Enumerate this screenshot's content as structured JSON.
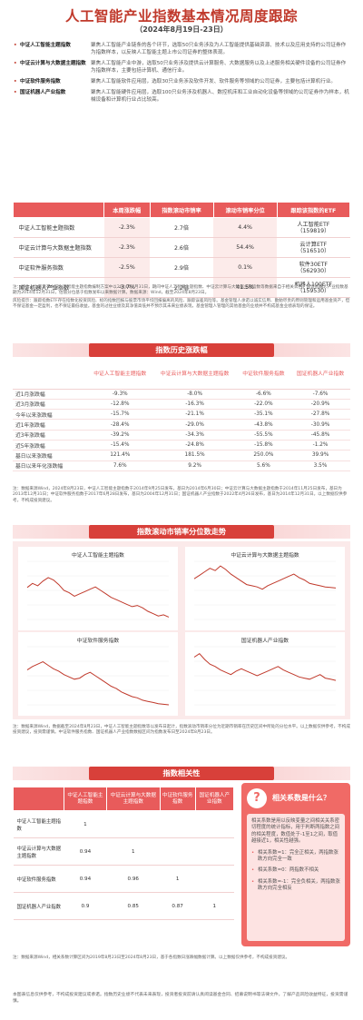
{
  "header": {
    "title": "人工智能产业指数基本情况周度跟踪",
    "subtitle": "（2024年8月19日-23日）"
  },
  "intro": [
    {
      "name": "中证人工智能主题指数",
      "desc": "聚焦人工智能产业链条的各个环节，选取50只业务涉及为人工智能提供基础资源、技术以及应用支持的公司证券作为指数样本，以反映人工智能主题上市公司证券的整体表现。"
    },
    {
      "name": "中证云计算与大数据主题指数",
      "desc": "聚焦人工智能产业中游，选取50只业务涉及提供云计算服务、大数据服务以及上述服务相关硬件设备的公司证券作为指数样本，主要包括计算机、通信行业。"
    },
    {
      "name": "中证软件服务指数",
      "desc": "聚焦人工智能软件应用层，选取30只业务涉及软件开发、软件服务等领域的公司证券，主要包括计算机行业。"
    },
    {
      "name": "国证机器人产业指数",
      "desc": "聚焦人工智能硬件应用层，选取100只业务涉及机器人、数控机床和工业自动化设备等领域的公司证券作为样本，机械设备和计算机行业占比较高。"
    }
  ],
  "weekly_table": {
    "headers": [
      "",
      "本周涨跌幅",
      "指数滚动市销率",
      "滚动市销率分位",
      "跟踪该指数的ETF"
    ],
    "rows": [
      {
        "name": "中证人工智能主题指数",
        "change": "-2.3%",
        "ps": "2.7倍",
        "pct": "4.4%",
        "etf": "人工智能ETF\n（159819）"
      },
      {
        "name": "中证云计算与大数据主题指数",
        "change": "-2.3%",
        "ps": "2.6倍",
        "pct": "54.4%",
        "etf": "云计算ETF\n（516510）"
      },
      {
        "name": "中证软件服务指数",
        "change": "-2.5%",
        "ps": "2.9倍",
        "pct": "0.1%",
        "etf": "软件30ETF\n（562930）"
      },
      {
        "name": "国证机器人产业指数",
        "change": "-3.7%",
        "ps": "2.2倍",
        "pct": "41.5%",
        "etf": "机器人100ETF\n（159530）"
      }
    ]
  },
  "notes": {
    "n1": "注：行业占比来源于中证人工智能主题指数编制方案中以2024年7月31日，期间中证人工智能主题指数、中证云计算与大数据主题指数等数据来自于相关公告，国证机器人产业指数基期为2014年12月31日，估值分位基于指数发布以来数据计算。数据来源：Wind，截至2024年8月23日。",
    "n2": "风险提示：跟踪指数ETF存在指数化投资风险、标的指数回报与股票市场平均回报偏离的风险、跟踪误差风险等。基金管理人承诺以诚实信用、勤勉尽责的原则管理和运用基金资产，但不保证基金一定盈利，也不保证最低收益。基金的过往业绩及其净值高低并不预示其未来业绩表现，基金管理人管理的其他基金的业绩并不构成基金业绩表现的保证。",
    "n3": "注：数据来源Wind，2024年8月23日，中证人工智能主题指数于2014年9月25日发布，基日为2014年6月30日；中证云计算与大数据主题指数于2014年11月25日发布，基日为2013年12月31日；中证软件服务指数于2017年6月28日发布，基日为2004年12月31日；国证机器人产业指数于2022年4月26日发布，基日为2014年12月31日。以上数据仅供参考，不构成投资建议。",
    "n4": "注：数据来源Wind，数据截至2024年8月23日，中证人工智能主题指数等以发布日起计，指数滚动市销率分位为近期市销率在历史区间中所处的分位水平。以上数据仅供参考，不构成投资建议，投资需谨慎。中证软件服务指数、国证机器人产业指数数据区间为指数发布日至2024年8月23日。",
    "n5": "注：数据来源Wind，相关系数计算区间为2019年8月23日至2024年8月23日，基于各指数日涨跌幅数据计算。以上数据仅供参考，不构成投资建议。"
  },
  "sections": {
    "history": "指数历史涨跌幅",
    "ps_trend": "指数滚动市销率分位数走势",
    "correlation": "指数相关性"
  },
  "history_table": {
    "headers": [
      "",
      "中证人工智能主题指数",
      "中证云计算与大数据主题指数",
      "中证软件服务指数",
      "国证机器人产业指数"
    ],
    "rows": [
      [
        "近1月涨跌幅",
        "-9.3%",
        "-8.0%",
        "-6.6%",
        "-7.6%"
      ],
      [
        "近3月涨跌幅",
        "-12.8%",
        "-16.3%",
        "-22.0%",
        "-20.9%"
      ],
      [
        "今年以来涨跌幅",
        "-15.7%",
        "-21.1%",
        "-35.1%",
        "-27.8%"
      ],
      [
        "近1年涨跌幅",
        "-28.4%",
        "-29.0%",
        "-43.8%",
        "-30.9%"
      ],
      [
        "近3年涨跌幅",
        "-39.2%",
        "-34.3%",
        "-55.5%",
        "-45.8%"
      ],
      [
        "近5年涨跌幅",
        "-15.4%",
        "-24.8%",
        "-15.8%",
        "-1.2%"
      ],
      [
        "基日以来涨跌幅",
        "121.4%",
        "181.5%",
        "250.0%",
        "39.9%"
      ],
      [
        "基日以来年化涨跌幅",
        "7.6%",
        "9.2%",
        "5.6%",
        "3.5%"
      ]
    ]
  },
  "ps_charts": {
    "titles": [
      "中证人工智能主题指数",
      "中证云计算与大数据主题指数",
      "中证软件服务指数",
      "国证机器人产业指数"
    ]
  },
  "correlation": {
    "headers": [
      "",
      "中证人工智能主题指数",
      "中证云计算与大数据主题指数",
      "中证软件服务指数",
      "国证机器人产业指数"
    ],
    "rows": [
      [
        "中证人工智能主题指数",
        "1",
        "",
        "",
        ""
      ],
      [
        "中证云计算与大数据主题指数",
        "0.94",
        "1",
        "",
        ""
      ],
      [
        "中证软件服务指数",
        "0.94",
        "0.96",
        "1",
        ""
      ],
      [
        "国证机器人产业指数",
        "0.9",
        "0.85",
        "0.87",
        "1"
      ]
    ]
  },
  "sidebar": {
    "title": "相关系数是什么？",
    "intro": "相关系数是用以反映变量之间相关关系密切程度的统计指标，用于判断两指数之间的相关程度，数值处于-1至1之间，取值越接近1，相关性越强。",
    "b1": "相关系数=1：完全正相关，两指数涨跌方向完全一致",
    "b2": "相关系数=0：两指数不相关",
    "b3": "相关系数=-1：完全负相关，两指数涨跌方向完全相反"
  },
  "footer": "本图表信息仅供参考，不构成投资建议或承诺。指数历史业绩不代表未来表现，投资者投资前请认真阅读基金合同、招募说明书等法律文件，了解产品风险收益特征，投资需谨慎。",
  "colors": {
    "accent": "#e85b5b",
    "title": "#c0392b",
    "line": "#c0392b"
  },
  "chart_data": {
    "type": "line",
    "title": "指数滚动市销率分位数走势",
    "series": [
      {
        "name": "中证人工智能主题指数",
        "values": [
          55,
          62,
          58,
          66,
          72,
          68,
          60,
          50,
          46,
          40,
          44,
          48,
          52,
          56,
          50,
          44,
          38,
          34,
          30,
          26,
          22,
          24,
          20,
          14,
          10,
          6,
          8,
          4
        ]
      },
      {
        "name": "中证云计算与大数据主题指数",
        "values": [
          70,
          76,
          82,
          88,
          84,
          92,
          86,
          78,
          72,
          66,
          60,
          58,
          56,
          52,
          58,
          62,
          66,
          70,
          74,
          78,
          72,
          68,
          62,
          60,
          58,
          56,
          55,
          54
        ]
      },
      {
        "name": "中证软件服务指数",
        "values": [
          60,
          66,
          70,
          74,
          68,
          62,
          58,
          52,
          48,
          44,
          46,
          52,
          56,
          50,
          44,
          38,
          32,
          28,
          22,
          18,
          14,
          12,
          8,
          6,
          4,
          2,
          1,
          0
        ]
      },
      {
        "name": "国证机器人产业指数",
        "values": [
          82,
          88,
          78,
          70,
          66,
          60,
          56,
          52,
          58,
          62,
          58,
          54,
          50,
          54,
          58,
          62,
          66,
          60,
          56,
          52,
          48,
          46,
          44,
          48,
          52,
          46,
          44,
          42
        ]
      }
    ],
    "ylim": [
      0,
      100
    ]
  }
}
